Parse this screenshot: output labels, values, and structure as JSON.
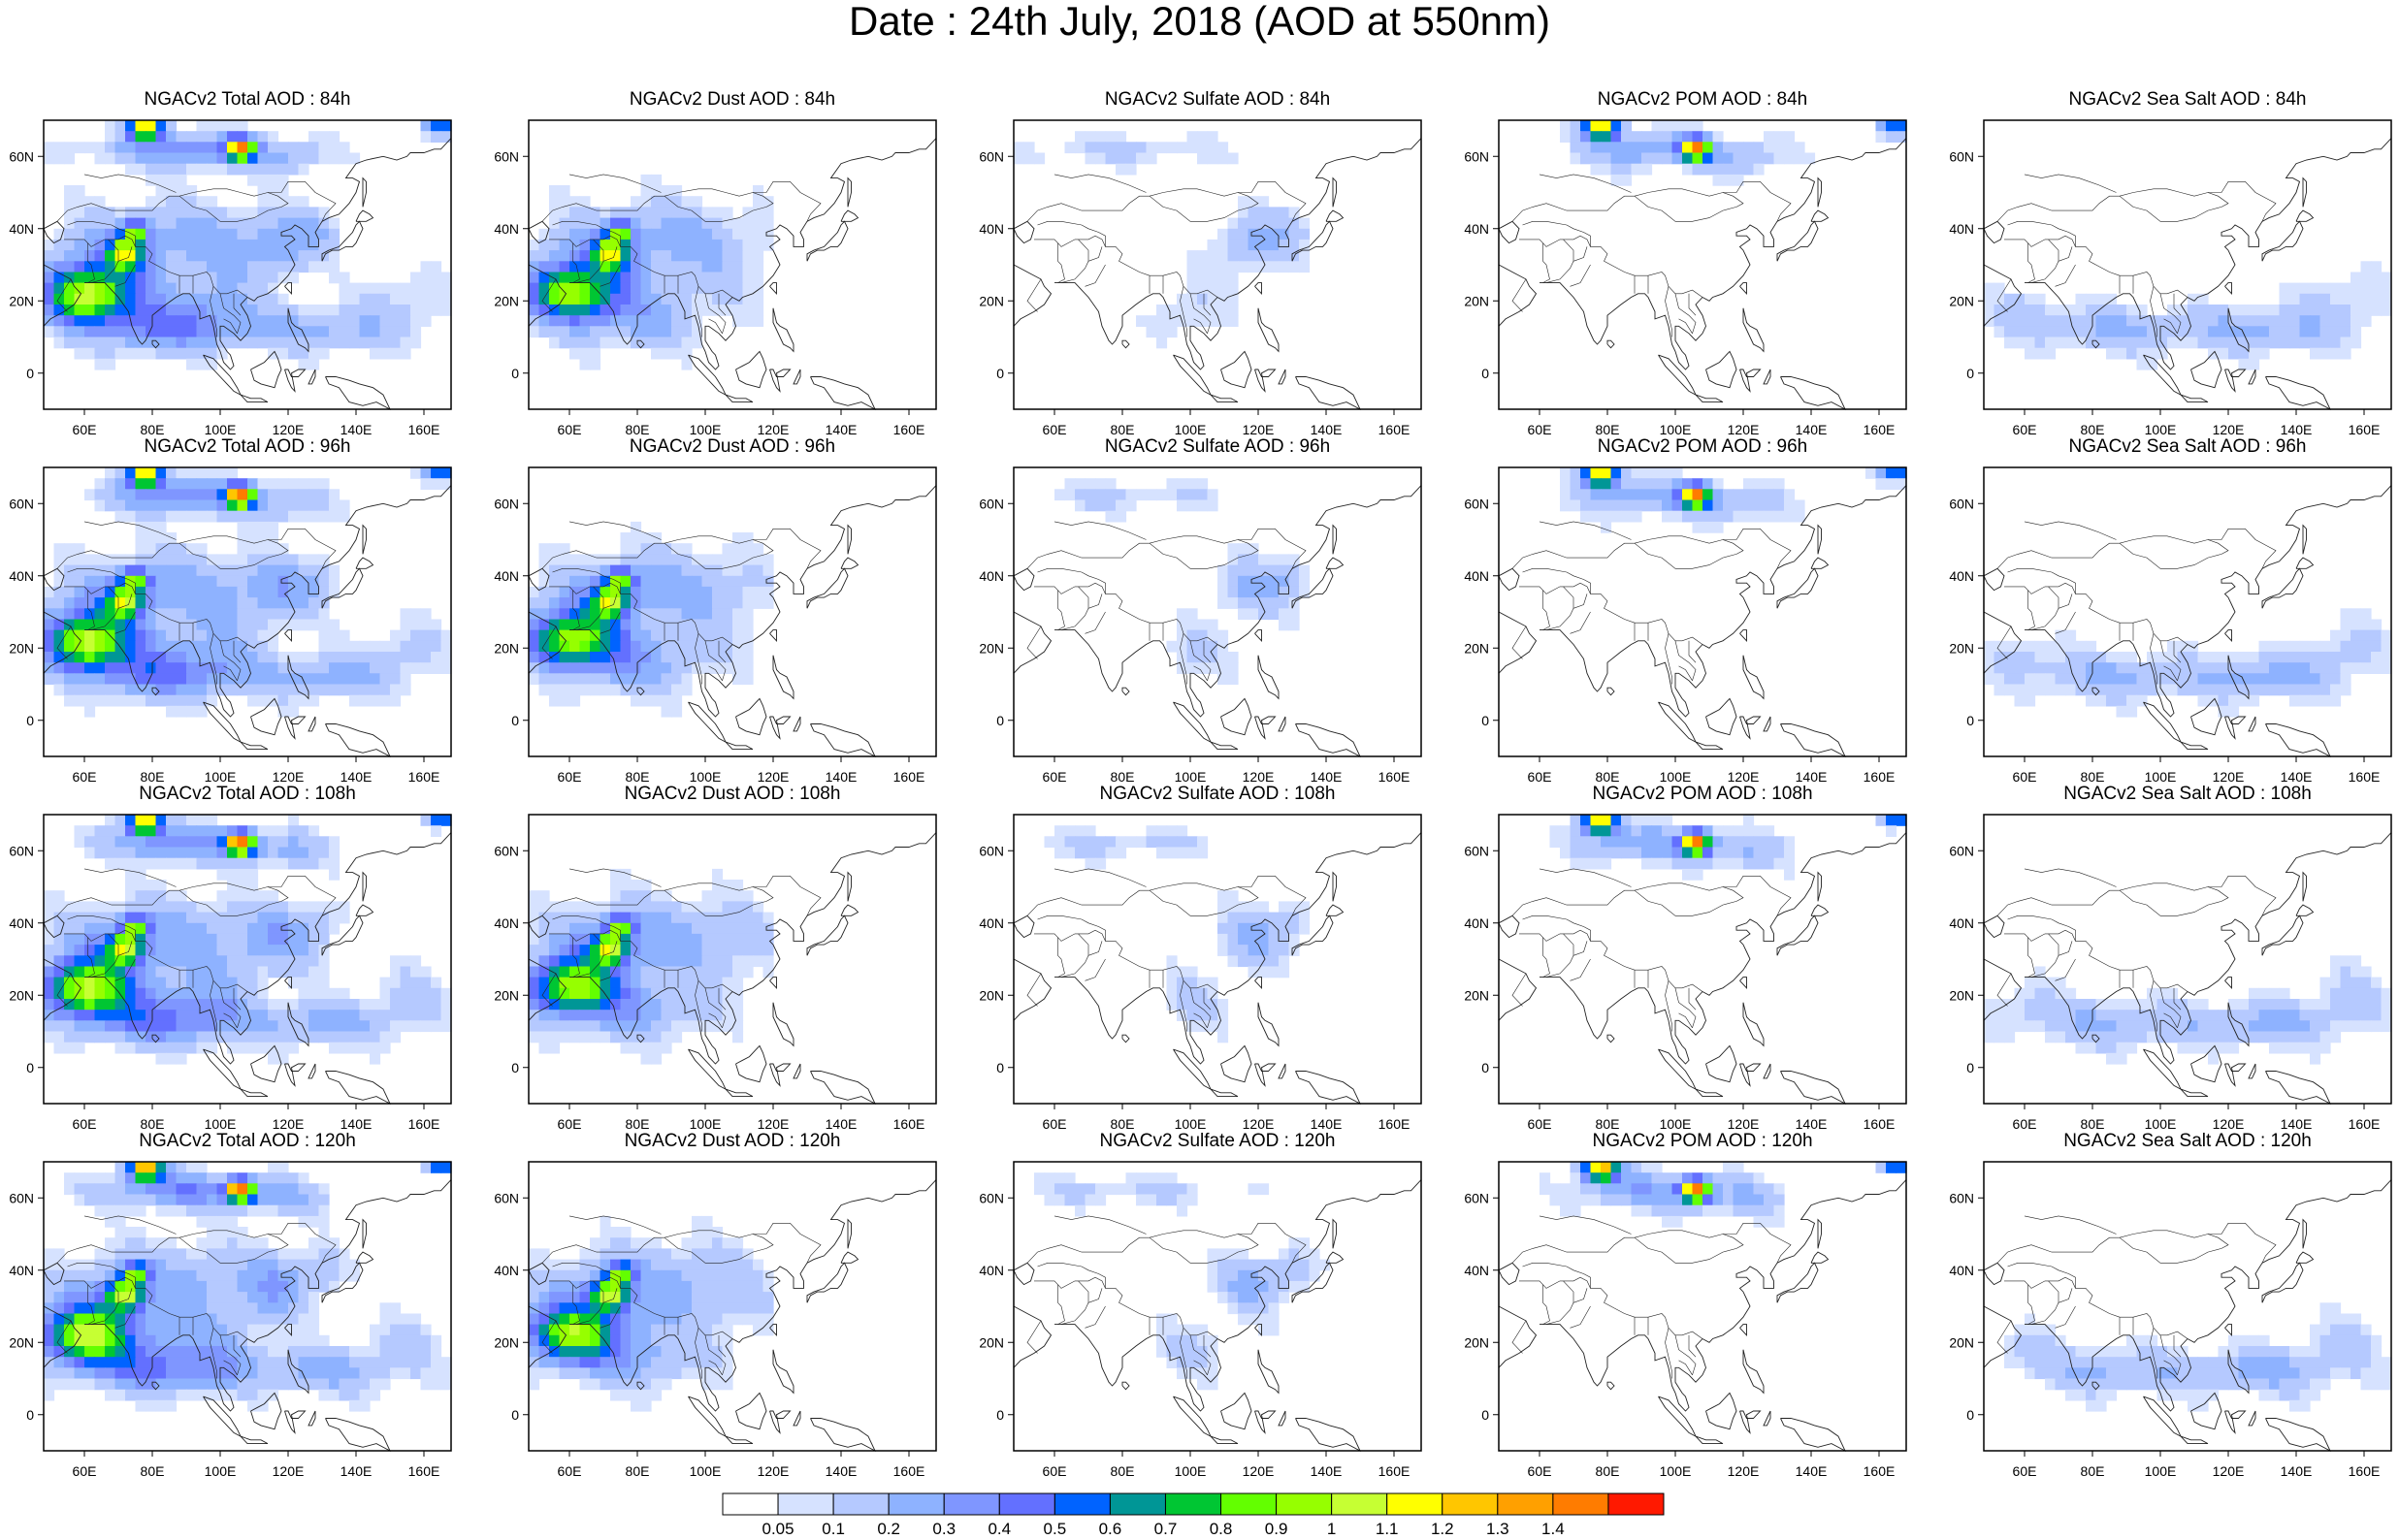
{
  "title": "Date : 24th July, 2018 (AOD at 550nm)",
  "lon_labels": [
    "60E",
    "80E",
    "100E",
    "120E",
    "140E",
    "160E"
  ],
  "lat_labels": [
    "60N",
    "40N",
    "20N",
    "0"
  ],
  "panels": [
    [
      {
        "title": "NGACv2 Total AOD : 84h",
        "species": "total",
        "icon": "aod-map"
      },
      {
        "title": "NGACv2 Dust AOD : 84h",
        "species": "dust",
        "icon": "aod-map"
      },
      {
        "title": "NGACv2 Sulfate AOD : 84h",
        "species": "sulfate",
        "icon": "aod-map"
      },
      {
        "title": "NGACv2 POM AOD : 84h",
        "species": "pom",
        "icon": "aod-map"
      },
      {
        "title": "NGACv2 Sea Salt AOD : 84h",
        "species": "seasalt",
        "icon": "aod-map"
      }
    ],
    [
      {
        "title": "NGACv2 Total AOD : 96h",
        "species": "total",
        "icon": "aod-map"
      },
      {
        "title": "NGACv2 Dust AOD : 96h",
        "species": "dust",
        "icon": "aod-map"
      },
      {
        "title": "NGACv2 Sulfate AOD : 96h",
        "species": "sulfate",
        "icon": "aod-map"
      },
      {
        "title": "NGACv2 POM AOD : 96h",
        "species": "pom",
        "icon": "aod-map"
      },
      {
        "title": "NGACv2 Sea Salt AOD : 96h",
        "species": "seasalt",
        "icon": "aod-map"
      }
    ],
    [
      {
        "title": "NGACv2 Total AOD : 108h",
        "species": "total",
        "icon": "aod-map"
      },
      {
        "title": "NGACv2 Dust AOD : 108h",
        "species": "dust",
        "icon": "aod-map"
      },
      {
        "title": "NGACv2 Sulfate AOD : 108h",
        "species": "sulfate",
        "icon": "aod-map"
      },
      {
        "title": "NGACv2 POM AOD : 108h",
        "species": "pom",
        "icon": "aod-map"
      },
      {
        "title": "NGACv2 Sea Salt AOD : 108h",
        "species": "seasalt",
        "icon": "aod-map"
      }
    ],
    [
      {
        "title": "NGACv2 Total AOD : 120h",
        "species": "total",
        "icon": "aod-map"
      },
      {
        "title": "NGACv2 Dust AOD : 120h",
        "species": "dust",
        "icon": "aod-map"
      },
      {
        "title": "NGACv2 Sulfate AOD : 120h",
        "species": "sulfate",
        "icon": "aod-map"
      },
      {
        "title": "NGACv2 POM AOD : 120h",
        "species": "pom",
        "icon": "aod-map"
      },
      {
        "title": "NGACv2 Sea Salt  AOD : 120h",
        "species": "seasalt",
        "icon": "aod-map"
      }
    ]
  ],
  "colorbar": {
    "labels": [
      "0.05",
      "0.1",
      "0.2",
      "0.3",
      "0.4",
      "0.5",
      "0.6",
      "0.7",
      "0.8",
      "0.9",
      "1",
      "1.1",
      "1.2",
      "1.3",
      "1.4"
    ],
    "colors": [
      "#ffffff",
      "#d6e2ff",
      "#b5c9ff",
      "#8eb2ff",
      "#7f96ff",
      "#6370ff",
      "#0063ff",
      "#009696",
      "#00c633",
      "#63ff00",
      "#96ff00",
      "#c6ff33",
      "#ffff00",
      "#ffc600",
      "#ffa000",
      "#ff7c00",
      "#ff1900"
    ]
  }
}
